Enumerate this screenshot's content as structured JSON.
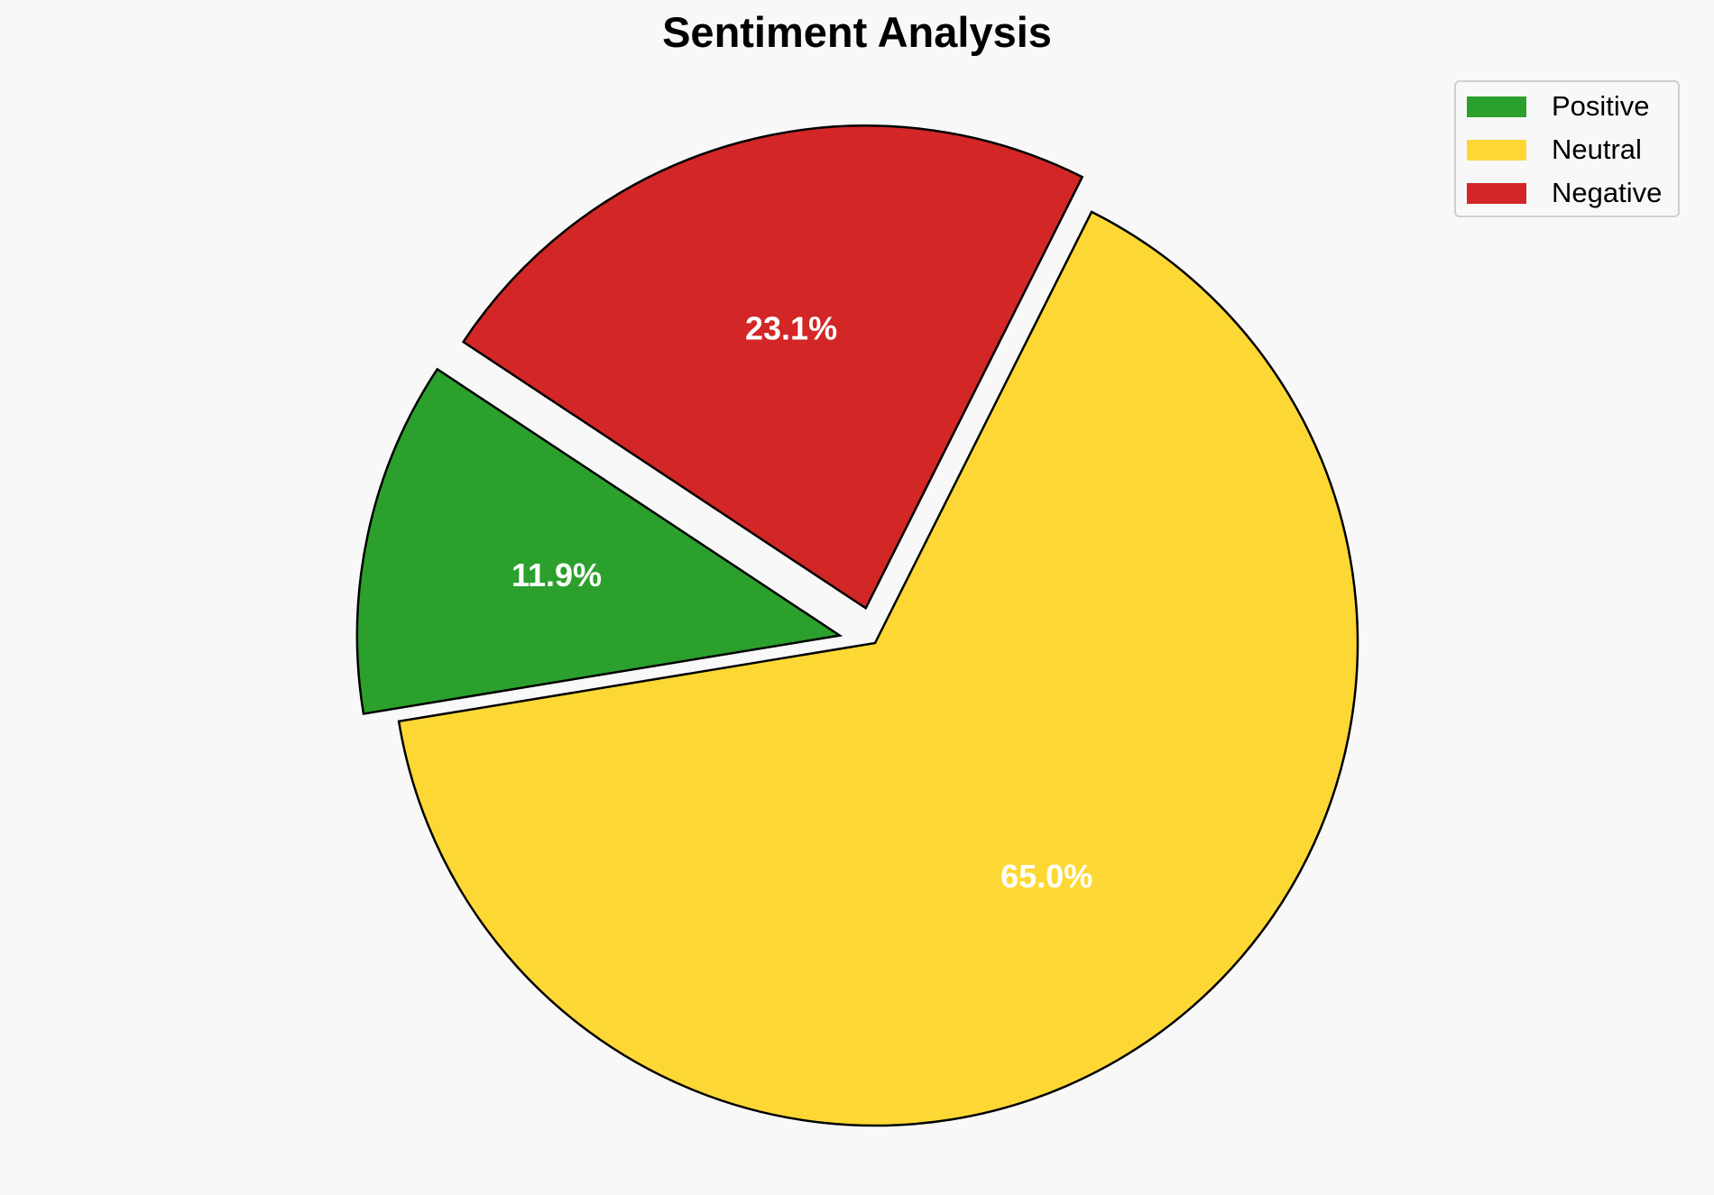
{
  "chart_data": {
    "type": "pie",
    "title": "Sentiment Analysis",
    "categories": [
      "Positive",
      "Neutral",
      "Negative"
    ],
    "values": [
      11.9,
      65.0,
      23.1
    ],
    "labels": [
      "11.9%",
      "65.0%",
      "23.1%"
    ],
    "colors": [
      "#2ca02c",
      "#fdd835",
      "#d32626"
    ],
    "exploded": [
      true,
      false,
      true
    ],
    "legend": {
      "position": "top-right",
      "entries": [
        "Positive",
        "Neutral",
        "Negative"
      ]
    }
  }
}
